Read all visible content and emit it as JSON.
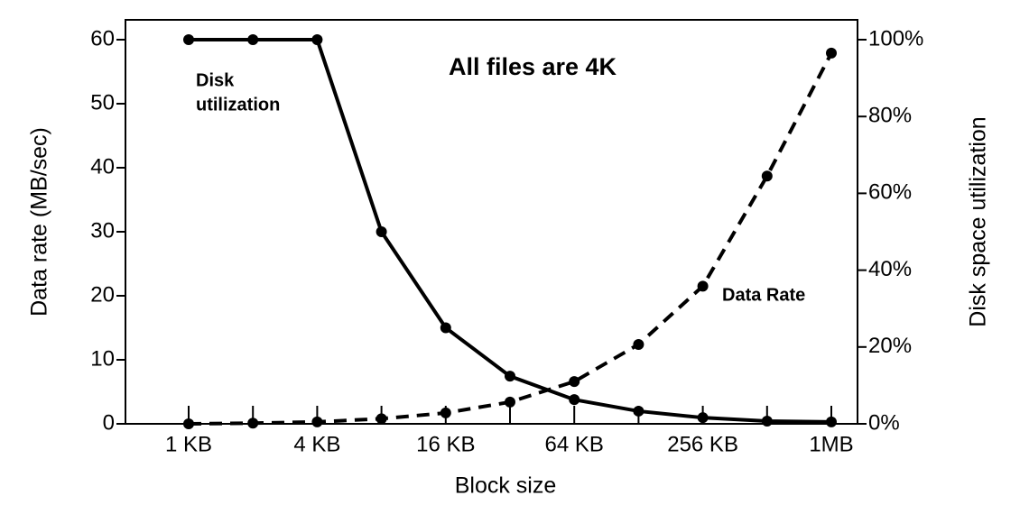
{
  "chart_data": {
    "type": "line",
    "title": "All files are 4K",
    "xlabel": "Block size",
    "ylabel": "Data rate (MB/sec)",
    "y2label": "Disk space utilization",
    "categories": [
      "1 KB",
      null,
      "4 KB",
      null,
      "16 KB",
      null,
      "64 KB",
      null,
      "256 KB",
      null,
      "1MB"
    ],
    "ylim": [
      0,
      60
    ],
    "yticks": [
      0,
      10,
      20,
      30,
      40,
      50,
      60
    ],
    "y2lim": [
      0,
      100
    ],
    "y2ticks": [
      {
        "value": 0,
        "label": "0%"
      },
      {
        "value": 20,
        "label": "20%"
      },
      {
        "value": 40,
        "label": "40%"
      },
      {
        "value": 60,
        "label": "60%"
      },
      {
        "value": 80,
        "label": "80%"
      },
      {
        "value": 100,
        "label": "100%"
      }
    ],
    "series": [
      {
        "axis": "y2",
        "color": "#000000",
        "line_style": "solid",
        "values": [
          100,
          100,
          100,
          50,
          25,
          12.4,
          6.3,
          3.3,
          1.6,
          0.7,
          0.5
        ]
      },
      {
        "axis": "y",
        "color": "#000000",
        "line_style": "dashed",
        "values": [
          0,
          0.1,
          0.3,
          0.8,
          1.7,
          3.4,
          6.6,
          12.4,
          21.5,
          38.7,
          57.9
        ]
      }
    ],
    "annotations": [
      {
        "lines": [
          "Disk",
          "utilization"
        ]
      },
      {
        "lines": [
          "Data Rate"
        ]
      }
    ]
  }
}
